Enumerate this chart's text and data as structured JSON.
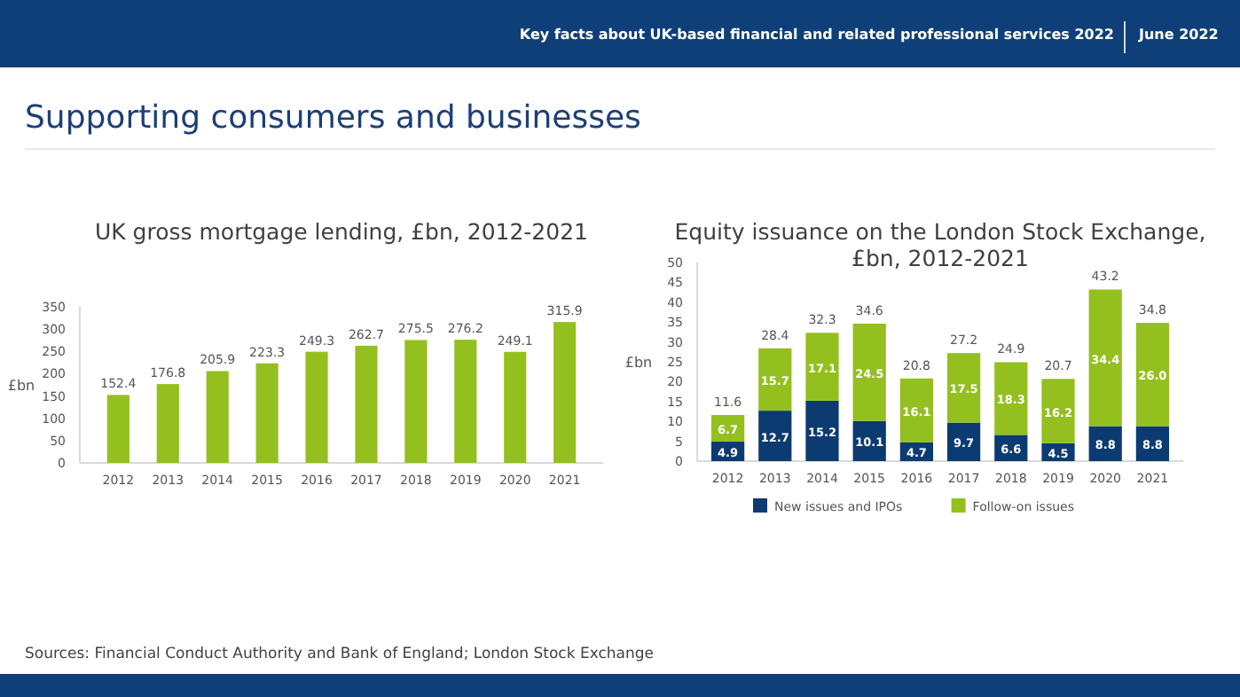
{
  "chart_data": [
    {
      "type": "bar",
      "title": "UK gross mortgage lending, £bn, 2012-2021",
      "ylabel": "£bn",
      "categories": [
        "2012",
        "2013",
        "2014",
        "2015",
        "2016",
        "2017",
        "2018",
        "2019",
        "2020",
        "2021"
      ],
      "values": [
        152.4,
        176.8,
        205.9,
        223.3,
        249.3,
        262.7,
        275.5,
        276.2,
        249.1,
        315.9
      ],
      "color": "#93c01f",
      "ylim": [
        0,
        350
      ],
      "yticks": [
        0,
        50,
        100,
        150,
        200,
        250,
        300,
        350
      ],
      "data_labels": true,
      "annotations": [
        "Key facts about UK-based financial and related professional services 2022",
        "June 2022",
        "Supporting consumers and businesses",
        "Sources: Financial Conduct Authority and Bank of England; London Stock Exchange"
      ]
    },
    {
      "type": "bar",
      "title": "Equity issuance on the London Stock Exchange, £bn, 2012-2021",
      "ylabel": "£bn",
      "stacked": true,
      "categories": [
        "2012",
        "2013",
        "2014",
        "2015",
        "2016",
        "2017",
        "2018",
        "2019",
        "2020",
        "2021"
      ],
      "series": [
        {
          "name": "New issues and IPOs",
          "color": "#0c3b72",
          "values": [
            4.9,
            12.7,
            15.2,
            10.1,
            4.7,
            9.7,
            6.6,
            4.5,
            8.8,
            8.8
          ]
        },
        {
          "name": "Follow-on issues",
          "color": "#93c01f",
          "values": [
            6.7,
            15.7,
            17.1,
            24.5,
            16.1,
            17.5,
            18.3,
            16.2,
            34.4,
            26.0
          ],
          "value_labels": [
            "6.7",
            "15.7",
            "17.1",
            "24.5",
            "16.1",
            "17.5",
            "18.3",
            "16.2",
            "34.4",
            "26.0"
          ]
        }
      ],
      "totals": [
        "11.6",
        "28.4",
        "32.3",
        "34.6",
        "20.8",
        "27.2",
        "24.9",
        "20.7",
        "43.2",
        "34.8"
      ],
      "ylim": [
        0,
        50
      ],
      "yticks": [
        0,
        5,
        10,
        15,
        20,
        25,
        30,
        35,
        40,
        45,
        50
      ],
      "data_labels": true,
      "legend": "bottom"
    }
  ]
}
